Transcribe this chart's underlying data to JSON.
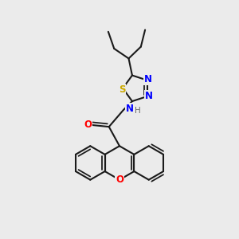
{
  "bg_color": "#ebebeb",
  "bond_color": "#1a1a1a",
  "bond_width": 1.5,
  "atom_colors": {
    "N": "#0000ff",
    "O": "#ff0000",
    "S": "#ccaa00",
    "H": "#666666"
  },
  "font_size_atom": 8.5,
  "font_size_H": 7.5
}
